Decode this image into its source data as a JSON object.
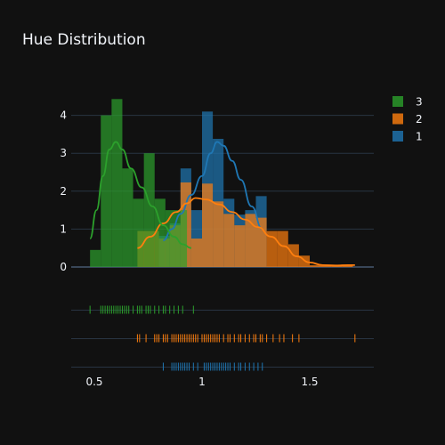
{
  "chart_data": {
    "type": "histogram",
    "title": "Hue Distribution",
    "xlabel": "",
    "ylabel": "",
    "xlim": [
      0.4,
      1.8
    ],
    "ylim": [
      0,
      4.5
    ],
    "x_ticks": [
      0.5,
      1,
      1.5
    ],
    "x_tick_labels": [
      "0.5",
      "1",
      "1.5"
    ],
    "y_ticks": [
      0,
      1,
      2,
      3,
      4
    ],
    "y_tick_labels": [
      "0",
      "1",
      "2",
      "3",
      "4"
    ],
    "grid": true,
    "legend_position": "top-right",
    "legend_order": [
      "3",
      "2",
      "1"
    ],
    "bin_width": 0.05,
    "series": [
      {
        "name": "1",
        "color": "#1f77b4",
        "bin_starts": [
          0.8,
          0.85,
          0.9,
          0.95,
          1.0,
          1.05,
          1.1,
          1.15,
          1.2,
          1.25
        ],
        "counts": [
          0.82,
          1.15,
          2.6,
          1.5,
          4.1,
          3.38,
          1.8,
          1.38,
          1.5,
          1.87
        ],
        "kde": [
          [
            0.82,
            0.7
          ],
          [
            0.86,
            1.0
          ],
          [
            0.9,
            1.4
          ],
          [
            0.95,
            1.9
          ],
          [
            1.0,
            2.4
          ],
          [
            1.04,
            3.0
          ],
          [
            1.07,
            3.3
          ],
          [
            1.1,
            3.2
          ],
          [
            1.14,
            2.8
          ],
          [
            1.18,
            2.3
          ],
          [
            1.23,
            1.6
          ],
          [
            1.28,
            1.0
          ]
        ],
        "rug": [
          0.82,
          0.86,
          0.87,
          0.88,
          0.89,
          0.9,
          0.91,
          0.92,
          0.93,
          0.94,
          0.96,
          0.98,
          1.01,
          1.02,
          1.03,
          1.04,
          1.05,
          1.06,
          1.07,
          1.08,
          1.09,
          1.1,
          1.11,
          1.12,
          1.13,
          1.15,
          1.17,
          1.18,
          1.2,
          1.22,
          1.24,
          1.26,
          1.28
        ]
      },
      {
        "name": "2",
        "color": "#ff7f0e",
        "bin_starts": [
          0.7,
          0.75,
          0.8,
          0.85,
          0.9,
          0.95,
          1.0,
          1.05,
          1.1,
          1.15,
          1.2,
          1.25,
          1.3,
          1.35,
          1.4,
          1.45,
          1.5,
          1.55,
          1.6,
          1.65
        ],
        "counts": [
          0.95,
          0.95,
          0.75,
          1.1,
          2.23,
          0.75,
          2.2,
          1.73,
          1.4,
          1.1,
          1.4,
          1.3,
          0.95,
          0.95,
          0.6,
          0.3,
          0.05,
          0.05,
          0.05,
          0.05
        ],
        "kde": [
          [
            0.7,
            0.5
          ],
          [
            0.76,
            0.8
          ],
          [
            0.82,
            1.15
          ],
          [
            0.88,
            1.45
          ],
          [
            0.93,
            1.68
          ],
          [
            0.97,
            1.82
          ],
          [
            1.02,
            1.78
          ],
          [
            1.08,
            1.65
          ],
          [
            1.14,
            1.45
          ],
          [
            1.2,
            1.25
          ],
          [
            1.26,
            1.05
          ],
          [
            1.32,
            0.8
          ],
          [
            1.38,
            0.55
          ],
          [
            1.44,
            0.28
          ],
          [
            1.5,
            0.12
          ],
          [
            1.56,
            0.05
          ],
          [
            1.62,
            0.04
          ],
          [
            1.68,
            0.05
          ],
          [
            1.71,
            0.05
          ]
        ],
        "rug": [
          0.7,
          0.71,
          0.74,
          0.78,
          0.79,
          0.8,
          0.82,
          0.83,
          0.84,
          0.86,
          0.87,
          0.88,
          0.89,
          0.9,
          0.91,
          0.92,
          0.93,
          0.94,
          0.95,
          0.96,
          0.97,
          0.98,
          1.0,
          1.01,
          1.02,
          1.03,
          1.04,
          1.05,
          1.06,
          1.07,
          1.08,
          1.1,
          1.12,
          1.13,
          1.15,
          1.17,
          1.18,
          1.2,
          1.22,
          1.24,
          1.25,
          1.27,
          1.28,
          1.3,
          1.33,
          1.36,
          1.38,
          1.42,
          1.45,
          1.71
        ]
      },
      {
        "name": "3",
        "color": "#2ca02c",
        "bin_starts": [
          0.48,
          0.53,
          0.58,
          0.63,
          0.68,
          0.73,
          0.78,
          0.83,
          0.88
        ],
        "counts": [
          0.45,
          4.0,
          4.43,
          2.6,
          1.8,
          3.0,
          1.8,
          1.5,
          1.5
        ],
        "kde": [
          [
            0.48,
            0.75
          ],
          [
            0.51,
            1.5
          ],
          [
            0.54,
            2.4
          ],
          [
            0.57,
            3.1
          ],
          [
            0.6,
            3.3
          ],
          [
            0.63,
            3.1
          ],
          [
            0.67,
            2.6
          ],
          [
            0.72,
            2.1
          ],
          [
            0.77,
            1.6
          ],
          [
            0.82,
            1.1
          ],
          [
            0.87,
            0.8
          ],
          [
            0.91,
            0.6
          ],
          [
            0.95,
            0.5
          ]
        ],
        "rug": [
          0.48,
          0.53,
          0.54,
          0.55,
          0.56,
          0.57,
          0.58,
          0.59,
          0.6,
          0.61,
          0.62,
          0.63,
          0.64,
          0.65,
          0.66,
          0.68,
          0.7,
          0.71,
          0.72,
          0.74,
          0.75,
          0.76,
          0.78,
          0.8,
          0.82,
          0.83,
          0.85,
          0.87,
          0.89,
          0.91,
          0.96
        ]
      }
    ]
  }
}
